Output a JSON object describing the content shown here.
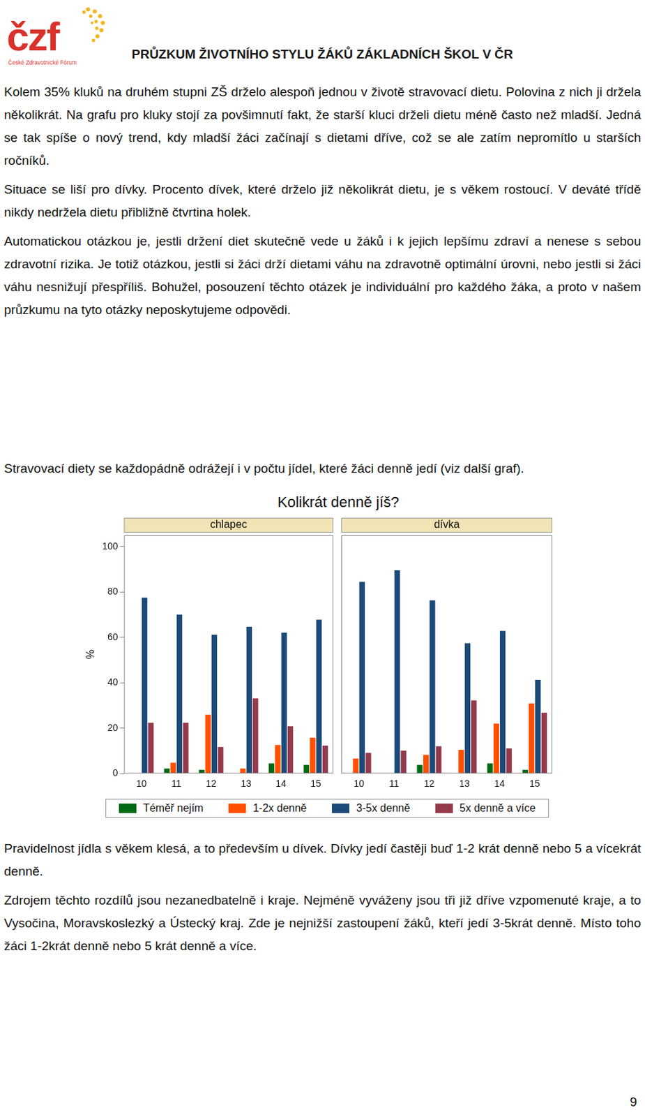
{
  "header": {
    "logo": "čzf",
    "logo_subtitle": "České Zdravotnické Fórum",
    "title": "PRŮZKUM ŽIVOTNÍHO STYLU ŽÁKŮ ZÁKLADNÍCH ŠKOL V ČR"
  },
  "paragraphs_before": [
    "Kolem 35% kluků na druhém stupni ZŠ drželo alespoň jednou v životě stravovací dietu. Polovina z nich ji držela několikrát. Na grafu pro kluky stojí za povšimnutí fakt, že starší kluci drželi dietu méně často než mladší. Jedná se tak spíše o nový trend, kdy mladší žáci začínají s dietami dříve, což se ale zatím nepromítlo u starších ročníků.",
    "Situace se liší pro dívky. Procento dívek, které drželo již několikrát dietu, je s věkem rostoucí. V deváté třídě nikdy nedržela dietu přibližně čtvrtina holek.",
    "Automatickou otázkou je, jestli držení diet skutečně vede u žáků i k jejich lepšímu zdraví a nenese s sebou zdravotní rizika. Je totiž otázkou, jestli si žáci drží dietami váhu na zdravotně optimální úrovni, nebo jestli si žáci váhu nesnižují přespříliš. Bohužel, posouzení těchto otázek je individuální pro každého žáka, a proto v našem průzkumu na tyto otázky neposkytujeme odpovědi."
  ],
  "figure_intro": "Stravovací diety se každopádně odrážejí i v počtu jídel, které žáci denně jedí (viz další graf).",
  "figure_title": "Kolikrát denně jíš?",
  "chart_data": [
    {
      "type": "bar",
      "title": "chlapec",
      "ylabel": "%",
      "categories": [
        "10",
        "11",
        "12",
        "13",
        "14",
        "15"
      ],
      "series": [
        {
          "name": "Téměř nejím",
          "color": "#006a12",
          "values": [
            0,
            2.2,
            1.6,
            0,
            4.4,
            3.8
          ]
        },
        {
          "name": "1-2x denně",
          "color": "#fe5000",
          "values": [
            0,
            4.7,
            25.9,
            2.2,
            12.6,
            15.8
          ]
        },
        {
          "name": "3-5x denně",
          "color": "#1c4a78",
          "values": [
            77.5,
            70,
            61.2,
            64.7,
            62.1,
            67.8
          ]
        },
        {
          "name": "5x denně a více",
          "color": "#943a4c",
          "values": [
            22.4,
            22.4,
            11.7,
            33.1,
            20.8,
            12.3
          ]
        }
      ],
      "ylim": [
        0,
        105
      ],
      "yticks": [
        0,
        20,
        40,
        60,
        80,
        100
      ],
      "grid": false
    },
    {
      "type": "bar",
      "title": "dívka",
      "categories": [
        "10",
        "11",
        "12",
        "13",
        "14",
        "15"
      ],
      "series": [
        {
          "name": "Téměř nejím",
          "color": "#006a12",
          "values": [
            0,
            0,
            3.8,
            0,
            4.4,
            1.6
          ]
        },
        {
          "name": "1-2x denně",
          "color": "#fe5000",
          "values": [
            6.6,
            0,
            8.2,
            10.4,
            22,
            30.9
          ]
        },
        {
          "name": "3-5x denně",
          "color": "#1c4a78",
          "values": [
            84.5,
            89.6,
            76.3,
            57.4,
            62.8,
            41.3
          ]
        },
        {
          "name": "5x denně a více",
          "color": "#943a4c",
          "values": [
            9.1,
            10.1,
            12,
            32.2,
            11,
            26.8
          ]
        }
      ],
      "ylim": [
        0,
        105
      ],
      "yticks": [
        0,
        20,
        40,
        60,
        80,
        100
      ],
      "grid": false,
      "tick_labels": "x"
    }
  ],
  "paragraphs_after": [
    "Pravidelnost jídla s věkem klesá, a to především u dívek. Dívky jedí častěji buď 1-2 krát denně nebo 5 a vícekrát denně.",
    "Zdrojem těchto rozdílů jsou nezanedbatelně i kraje. Nejméně vyváženy jsou tři již dříve vzpomenuté kraje, a to Vysočina, Moravskoslezký a Ústecký kraj. Zde je nejnižší zastoupení žáků, kteří jedí 3-5krát denně. Místo toho žáci 1-2krát denně nebo 5 krát denně a více."
  ],
  "page_number": 9
}
